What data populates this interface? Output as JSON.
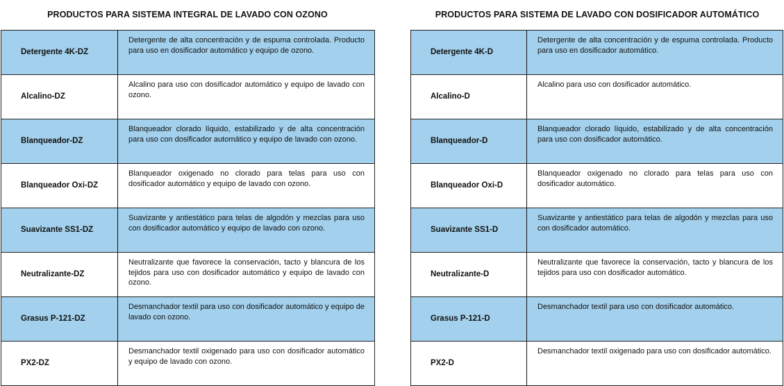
{
  "left": {
    "title": "PRODUCTOS PARA SISTEMA INTEGRAL DE LAVADO CON OZONO",
    "rows": [
      {
        "name": "Detergente 4K-DZ",
        "desc": "Detergente de alta concentración y de espuma controlada. Producto para uso en dosificador automático y equipo de ozono."
      },
      {
        "name": "Alcalino-DZ",
        "desc": "Alcalino para uso con dosificador automático y equipo de lavado con ozono."
      },
      {
        "name": "Blanqueador-DZ",
        "desc": "Blanqueador clorado líquido, estabilizado y de alta concentración para uso con dosificador automático y equipo de lavado con ozono."
      },
      {
        "name": "Blanqueador Oxi-DZ",
        "desc": "Blanqueador oxigenado no clorado para telas para uso con dosificador automático y equipo de lavado con ozono."
      },
      {
        "name": "Suavizante SS1-DZ",
        "desc": "Suavizante y antiestático para telas de algodón y mezclas para uso con dosificador automático y equipo de lavado con ozono."
      },
      {
        "name": "Neutralizante-DZ",
        "desc": "Neutralizante que favorece la conservación, tacto y blancura de los tejidos para uso con dosificador automático y equipo de lavado con ozono."
      },
      {
        "name": "Grasus P-121-DZ",
        "desc": "Desmanchador textil para uso con dosificador automático y equipo de lavado con ozono."
      },
      {
        "name": "PX2-DZ",
        "desc": "Desmanchador textil oxigenado para uso con dosificador automático y equipo de lavado con ozono."
      }
    ]
  },
  "right": {
    "title": "PRODUCTOS PARA SISTEMA DE LAVADO CON DOSIFICADOR AUTOMÁTICO",
    "rows": [
      {
        "name": "Detergente 4K-D",
        "desc": "Detergente de alta concentración y de espuma controlada. Producto para uso en dosificador automático."
      },
      {
        "name": "Alcalino-D",
        "desc": "Alcalino para uso con dosificador automático."
      },
      {
        "name": "Blanqueador-D",
        "desc": "Blanqueador clorado líquido, estabilizado y de alta concentración para uso con dosificador automático."
      },
      {
        "name": "Blanqueador Oxi-D",
        "desc": "Blanqueador oxigenado no clorado para telas para uso con dosificador automático."
      },
      {
        "name": "Suavizante SS1-D",
        "desc": "Suavizante y antiestático para telas de algodón y mezclas para uso con dosificador automático."
      },
      {
        "name": "Neutralizante-D",
        "desc": "Neutralizante que favorece la conservación, tacto y blancura de los tejidos para uso con dosificador automático."
      },
      {
        "name": "Grasus P-121-D",
        "desc": "Desmanchador textil para uso con dosificador automático."
      },
      {
        "name": "PX2-D",
        "desc": "Desmanchador textil oxigenado para uso con dosificador automático."
      }
    ]
  },
  "colors": {
    "row_highlight": "#a3d0ec",
    "border": "#222222"
  }
}
